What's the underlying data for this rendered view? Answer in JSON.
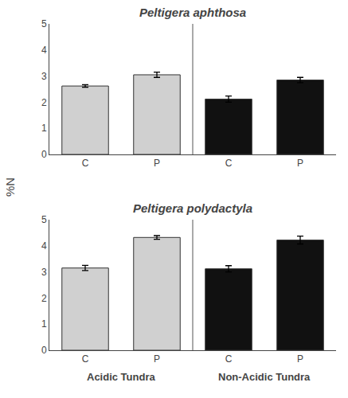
{
  "chart_data": [
    {
      "type": "bar",
      "title": "Peltigera aphthosa",
      "ylabel": "%N",
      "categories": [
        "C",
        "P",
        "C",
        "P"
      ],
      "values": [
        2.62,
        3.05,
        2.12,
        2.85
      ],
      "errors": [
        0.05,
        0.1,
        0.12,
        0.1
      ],
      "colors": [
        "#d0d0d0",
        "#d0d0d0",
        "#111111",
        "#111111"
      ],
      "ylim": [
        0,
        5
      ],
      "yticks": [
        0,
        1,
        2,
        3,
        4,
        5
      ],
      "grid": false
    },
    {
      "type": "bar",
      "title": "Peltigera polydactyla",
      "categories": [
        "C",
        "P",
        "C",
        "P"
      ],
      "values": [
        3.15,
        4.32,
        3.12,
        4.22
      ],
      "errors": [
        0.1,
        0.07,
        0.12,
        0.15
      ],
      "colors": [
        "#d0d0d0",
        "#d0d0d0",
        "#111111",
        "#111111"
      ],
      "ylim": [
        0,
        5
      ],
      "yticks": [
        0,
        1,
        2,
        3,
        4,
        5
      ],
      "grid": false,
      "annotations": [
        "Acidic Tundra",
        "Non-Acidic Tundra"
      ]
    }
  ]
}
